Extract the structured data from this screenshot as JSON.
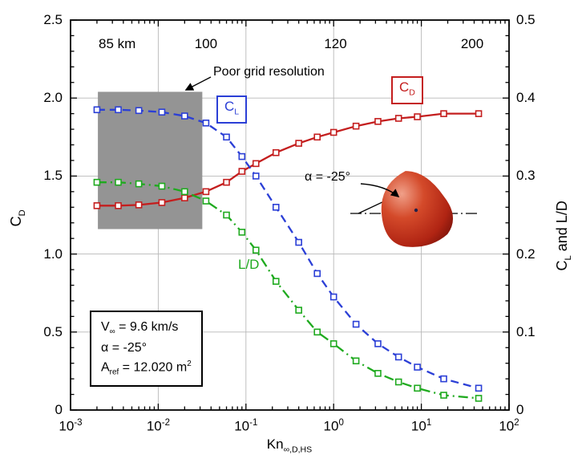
{
  "figure": {
    "background": "#ffffff"
  },
  "colors": {
    "cd": "#c41e1e",
    "cl": "#2b3fd6",
    "ld": "#1faa1f",
    "shade": "#949494",
    "grid": "#b8b8b8",
    "frame": "#000000"
  },
  "chart_data": {
    "type": "line",
    "title": "",
    "x_axis": {
      "label_main": "Kn",
      "label_sub": "∞,D,HS",
      "scale": "log",
      "min_exp": -3,
      "max_exp": 2,
      "tick_base": "10",
      "tick_exponents": [
        -3,
        -2,
        -1,
        0,
        1,
        2
      ]
    },
    "y_left_axis": {
      "label_main": "C",
      "label_sub": "D",
      "min": 0,
      "max": 2.5,
      "tick_values": [
        0,
        0.5,
        1.0,
        1.5,
        2.0,
        2.5
      ],
      "tick_labels": [
        "0",
        "0.5",
        "1.0",
        "1.5",
        "2.0",
        "2.5"
      ]
    },
    "y_right_axis": {
      "label_pre": "C",
      "label_sub": "L",
      "label_post": " and L/D",
      "min": 0,
      "max": 0.5,
      "tick_values": [
        0,
        0.1,
        0.2,
        0.3,
        0.4,
        0.5
      ],
      "tick_labels": [
        "0",
        "0.1",
        "0.2",
        "0.3",
        "0.4",
        "0.5"
      ]
    },
    "grid": true,
    "series": [
      {
        "name": "CD",
        "axis": "left",
        "color": "#c41e1e",
        "line_style": "solid",
        "marker": "open-square",
        "x": [
          0.002,
          0.0035,
          0.006,
          0.011,
          0.02,
          0.035,
          0.06,
          0.09,
          0.13,
          0.22,
          0.4,
          0.65,
          1.0,
          1.8,
          3.2,
          5.5,
          9,
          18,
          45
        ],
        "y": [
          1.31,
          1.31,
          1.315,
          1.33,
          1.36,
          1.4,
          1.46,
          1.53,
          1.58,
          1.65,
          1.71,
          1.75,
          1.78,
          1.82,
          1.85,
          1.87,
          1.88,
          1.9,
          1.9
        ]
      },
      {
        "name": "CL",
        "axis": "right",
        "color": "#2b3fd6",
        "line_style": "dashed",
        "marker": "open-square",
        "x": [
          0.002,
          0.0035,
          0.006,
          0.011,
          0.02,
          0.035,
          0.06,
          0.09,
          0.13,
          0.22,
          0.4,
          0.65,
          1.0,
          1.8,
          3.2,
          5.5,
          9,
          18,
          45
        ],
        "y": [
          0.385,
          0.385,
          0.384,
          0.382,
          0.377,
          0.368,
          0.35,
          0.325,
          0.3,
          0.26,
          0.215,
          0.175,
          0.145,
          0.11,
          0.085,
          0.068,
          0.055,
          0.04,
          0.028
        ]
      },
      {
        "name": "L/D",
        "axis": "right",
        "color": "#1faa1f",
        "line_style": "dashdot",
        "marker": "open-square",
        "x": [
          0.002,
          0.0035,
          0.006,
          0.011,
          0.02,
          0.035,
          0.06,
          0.09,
          0.13,
          0.22,
          0.4,
          0.65,
          1.0,
          1.8,
          3.2,
          5.5,
          9,
          18,
          45
        ],
        "y": [
          0.292,
          0.292,
          0.29,
          0.287,
          0.28,
          0.268,
          0.25,
          0.228,
          0.205,
          0.165,
          0.128,
          0.1,
          0.085,
          0.063,
          0.047,
          0.036,
          0.028,
          0.019,
          0.015
        ]
      }
    ],
    "altitude_labels": [
      {
        "text": "85 km",
        "kn": 0.0034
      },
      {
        "text": "100",
        "kn": 0.035
      },
      {
        "text": "120",
        "kn": 1.05
      },
      {
        "text": "200",
        "kn": 38
      }
    ],
    "altitude_label_y": 2.345,
    "shaded_region": {
      "label": "Poor grid resolution",
      "kn_min": 0.00205,
      "kn_max": 0.0318,
      "cd_min": 1.16,
      "cd_max": 2.04,
      "color": "#949494"
    }
  },
  "annotations": {
    "cl_box": {
      "main": "C",
      "sub": "L"
    },
    "cd_box": {
      "main": "C",
      "sub": "D"
    },
    "ld_label": "L/D",
    "alpha_label": "α = -25°"
  },
  "info_box": {
    "line1_pre": "V",
    "line1_sub": "∞",
    "line1_post": " = 9.6 km/s",
    "line2": "α = -25°",
    "line3_pre": "A",
    "line3_sub": "ref",
    "line3_post": " = 12.020 m",
    "line3_sup": "2"
  }
}
